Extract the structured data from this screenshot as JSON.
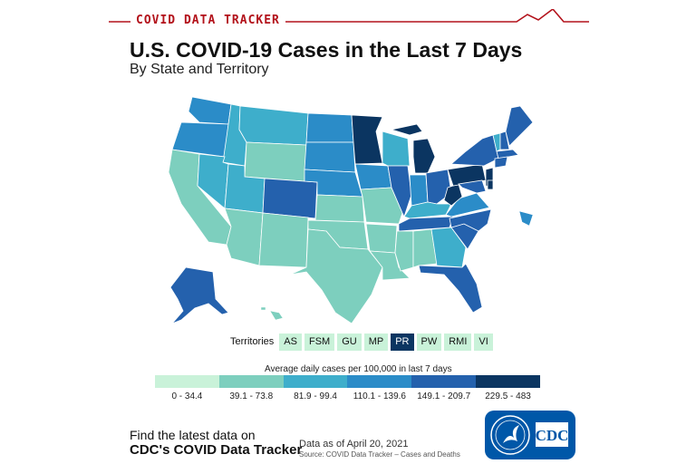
{
  "header": {
    "tracker_label": "COVID DATA TRACKER"
  },
  "title": "U.S. COVID-19 Cases in the Last 7 Days",
  "subtitle": "By State and Territory",
  "territories": {
    "label": "Territories",
    "items": [
      {
        "code": "AS",
        "bin": 0
      },
      {
        "code": "FSM",
        "bin": 0
      },
      {
        "code": "GU",
        "bin": 0
      },
      {
        "code": "MP",
        "bin": 0
      },
      {
        "code": "PR",
        "bin": 5
      },
      {
        "code": "PW",
        "bin": 0
      },
      {
        "code": "RMI",
        "bin": 0
      },
      {
        "code": "VI",
        "bin": 0
      }
    ]
  },
  "legend": {
    "title": "Average daily cases per 100,000 in last 7 days",
    "bins": [
      {
        "label": "0 - 34.4",
        "color": "#c9f2d9"
      },
      {
        "label": "39.1 - 73.8",
        "color": "#7dcfbe"
      },
      {
        "label": "81.9 - 99.4",
        "color": "#3eaecb"
      },
      {
        "label": "110.1 - 139.6",
        "color": "#2b8cc8"
      },
      {
        "label": "149.1 - 209.7",
        "color": "#2461ad"
      },
      {
        "label": "229.5 - 483",
        "color": "#0b3561"
      }
    ]
  },
  "footer": {
    "find_line1": "Find the latest data on",
    "find_line2": "CDC's COVID Data Tracker",
    "as_of": "Data as of April 20, 2021",
    "source": "Source: COVID Data Tracker – Cases and Deaths",
    "logo_text": "CDC"
  },
  "colors": {
    "brand_red": "#b3121b",
    "cdc_blue": "#0057a8"
  }
}
